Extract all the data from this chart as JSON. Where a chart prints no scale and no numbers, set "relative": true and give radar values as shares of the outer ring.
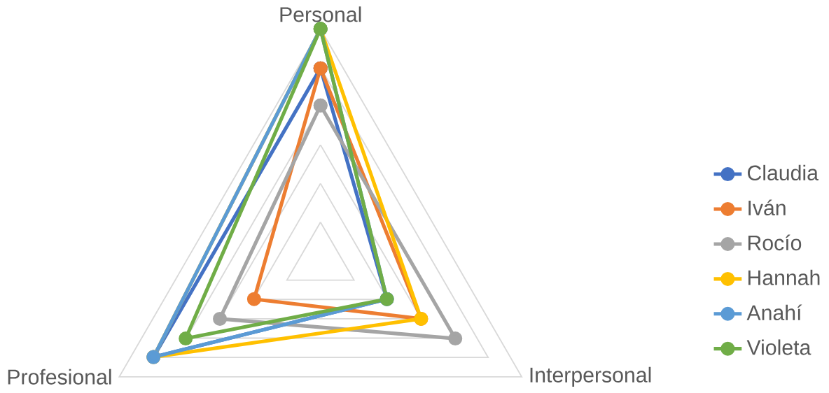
{
  "chart_data": {
    "type": "radar",
    "relative": true,
    "categories": [
      "Personal",
      "Interpersonal",
      "Profesional"
    ],
    "series": [
      {
        "name": "Claudia",
        "color": "#4472c4",
        "values": [
          0.83,
          0.33,
          0.83
        ]
      },
      {
        "name": "Iván",
        "color": "#ed7d31",
        "values": [
          0.83,
          0.5,
          0.33
        ]
      },
      {
        "name": "Rocío",
        "color": "#a5a5a5",
        "values": [
          0.67,
          0.67,
          0.5
        ]
      },
      {
        "name": "Hannah",
        "color": "#ffc000",
        "values": [
          1,
          0.5,
          0.83
        ]
      },
      {
        "name": "Anahí",
        "color": "#5b9bd5",
        "values": [
          1,
          0.33,
          0.83
        ]
      },
      {
        "name": "Violeta",
        "color": "#70ad47",
        "values": [
          1,
          0.33,
          0.67
        ]
      }
    ],
    "legend": "right",
    "marker": "circle",
    "line_style": "solid",
    "grid": true
  }
}
